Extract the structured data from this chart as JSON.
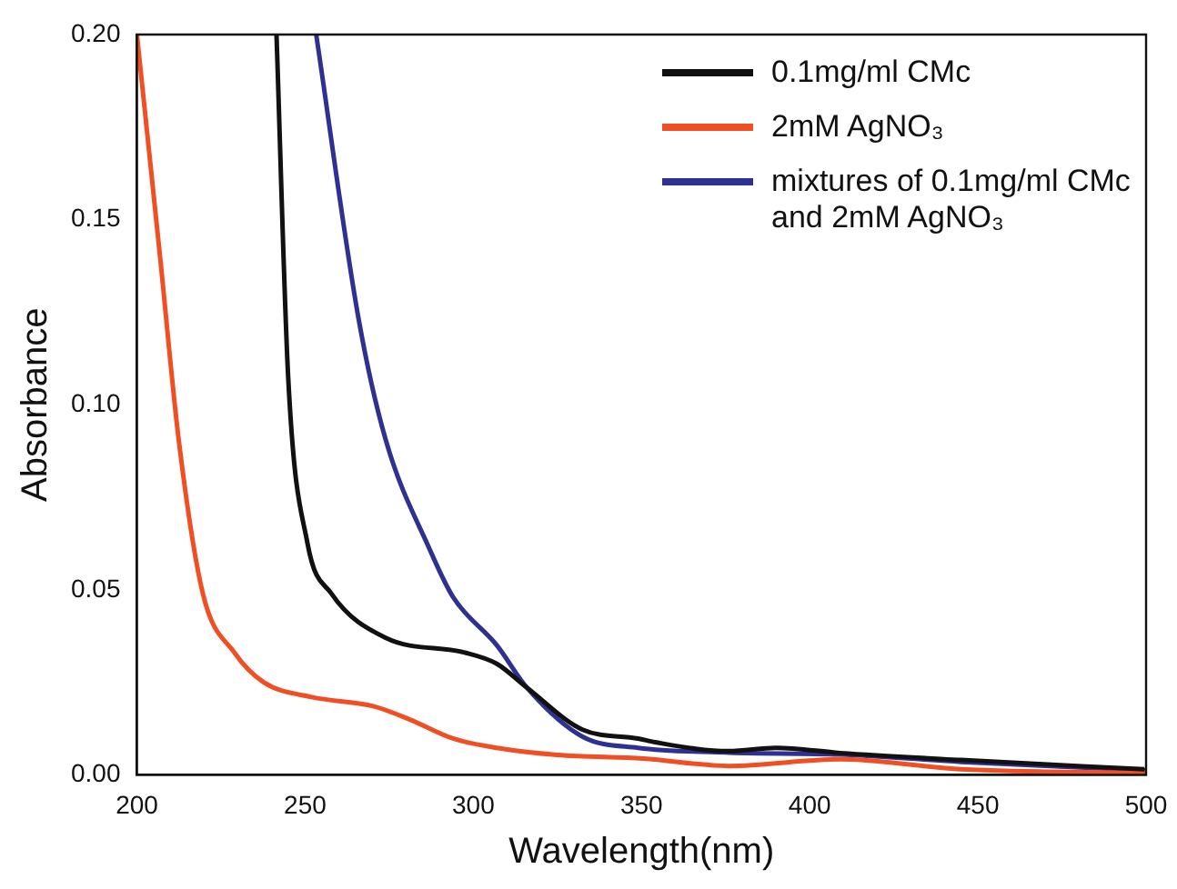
{
  "chart_data": {
    "type": "line",
    "xlabel": "Wavelength(nm)",
    "ylabel": "Absorbance",
    "xlim": [
      200,
      500
    ],
    "ylim": [
      0,
      0.2
    ],
    "xticks": [
      200,
      250,
      300,
      350,
      400,
      450,
      500
    ],
    "yticks": [
      {
        "value": 0,
        "label": "0.00"
      },
      {
        "value": 0.05,
        "label": "0.05"
      },
      {
        "value": 0.1,
        "label": "0.10"
      },
      {
        "value": 0.15,
        "label": "0.15"
      },
      {
        "value": 0.2,
        "label": "0.20"
      }
    ],
    "grid": false,
    "legend": "top right",
    "marker": "none",
    "line_style": "solid",
    "series": [
      {
        "name": "0.1mg/ml CMc",
        "color": "#111111",
        "x": [
          241.5,
          245,
          250.7,
          257.8,
          274,
          297.6,
          307,
          316,
          332.5,
          349,
          354,
          376,
          390,
          409,
          445,
          499.5
        ],
        "values": [
          0.2,
          0.107,
          0.0626,
          0.049,
          0.037,
          0.033,
          0.03,
          0.0235,
          0.0122,
          0.0098,
          0.0088,
          0.0064,
          0.0073,
          0.0059,
          0.004,
          0.0015
        ]
      },
      {
        "name": "2mM AgNO₃",
        "color": "#f04e23",
        "x": [
          200,
          207,
          212.5,
          219.6,
          229,
          237.7,
          252,
          270,
          281,
          294,
          307,
          325,
          350.5,
          376,
          409,
          445,
          500
        ],
        "values": [
          0.2,
          0.139,
          0.09,
          0.049,
          0.033,
          0.025,
          0.021,
          0.0186,
          0.015,
          0.0098,
          0.0073,
          0.0054,
          0.0044,
          0.0024,
          0.0042,
          0.0015,
          0.0005
        ]
      },
      {
        "name": "mixtures of 0.1mg/ml CMc and 2mM AgNO₃",
        "color": "#2e3192",
        "x": [
          253.3,
          266,
          274,
          287,
          294,
          307,
          316,
          332.5,
          349,
          376,
          409,
          445,
          500
        ],
        "values": [
          0.2,
          0.1227,
          0.0904,
          0.061,
          0.048,
          0.035,
          0.0235,
          0.0103,
          0.0073,
          0.006,
          0.0055,
          0.0035,
          0.0012
        ]
      }
    ]
  }
}
